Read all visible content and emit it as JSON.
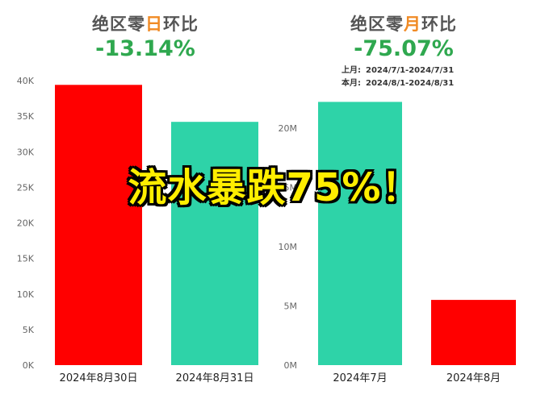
{
  "panels": [
    {
      "title_prefix": "绝区零",
      "title_highlight": "日",
      "title_suffix": "环比",
      "value": "-13.14%"
    },
    {
      "title_prefix": "绝区零",
      "title_highlight": "月",
      "title_suffix": "环比",
      "value": "-75.07%",
      "ranges": [
        {
          "label": "上月:",
          "value": "2024/7/1-2024/7/31"
        },
        {
          "label": "本月:",
          "value": "2024/8/1-2024/8/31"
        }
      ]
    }
  ],
  "overlay_text": "流水暴跌75%！",
  "chart_data": [
    {
      "type": "bar",
      "categories": [
        "2024年8月30日",
        "2024年8月31日"
      ],
      "values": [
        39400,
        34200
      ],
      "ylim": [
        0,
        40000
      ],
      "yticks": [
        0,
        5000,
        10000,
        15000,
        20000,
        25000,
        30000,
        35000,
        40000
      ],
      "ytick_labels": [
        "0K",
        "5K",
        "10K",
        "15K",
        "20K",
        "25K",
        "30K",
        "35K",
        "40K"
      ],
      "bar_colors": [
        "#ff0000",
        "#2ed3a8"
      ],
      "grid": false
    },
    {
      "type": "bar",
      "categories": [
        "2024年7月",
        "2024年8月"
      ],
      "values": [
        22200000,
        5500000
      ],
      "ylim": [
        0,
        22500000
      ],
      "yticks": [
        0,
        5000000,
        10000000,
        15000000,
        20000000
      ],
      "ytick_labels": [
        "0M",
        "5M",
        "10M",
        "15M",
        "20M"
      ],
      "bar_colors": [
        "#2ed3a8",
        "#ff0000"
      ],
      "grid": false
    }
  ]
}
